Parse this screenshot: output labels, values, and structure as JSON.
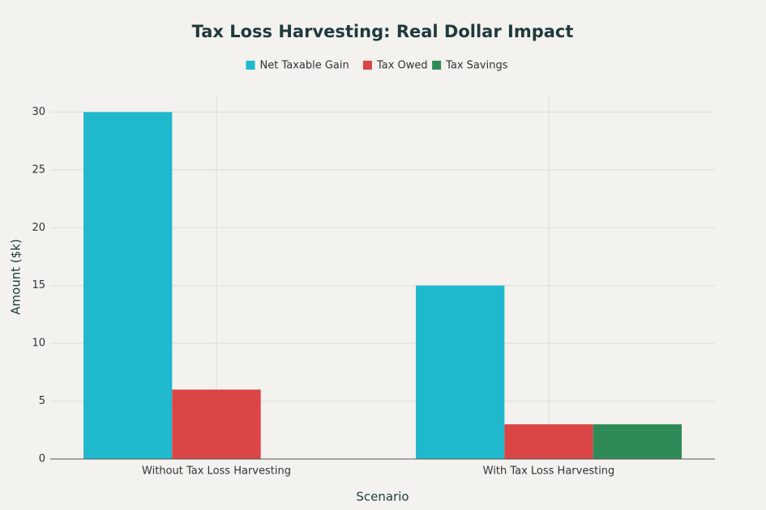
{
  "chart_data": {
    "type": "grouped_bar",
    "title": "Tax Loss Harvesting: Real Dollar Impact",
    "x_label": "Scenario",
    "y_label": "Amount ($k)",
    "categories": [
      "Without Tax Loss Harvesting",
      "With Tax Loss Harvesting"
    ],
    "series": [
      {
        "name": "Net Taxable Gain",
        "color": "#1fb8cd",
        "values": [
          30,
          15
        ]
      },
      {
        "name": "Tax Owed",
        "color": "#db4545",
        "values": [
          6,
          3
        ]
      },
      {
        "name": "Tax Savings",
        "color": "#2e8b57",
        "values": [
          null,
          3
        ]
      }
    ],
    "ylim": [
      0,
      31.5
    ],
    "yticks": [
      0,
      5,
      10,
      15,
      20,
      25,
      30
    ],
    "grid": true
  }
}
